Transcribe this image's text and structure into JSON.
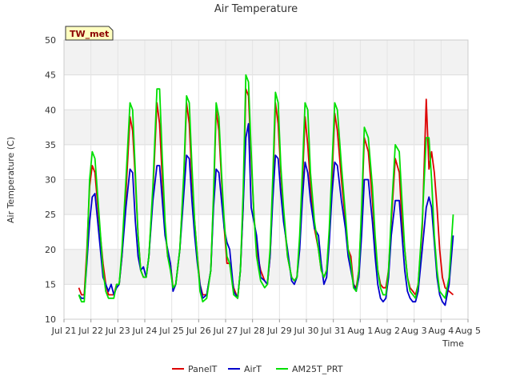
{
  "chart_data": {
    "type": "line",
    "title": "Air Temperature",
    "xlabel": "Time",
    "ylabel": "Air Temperature (C)",
    "ylim": [
      10,
      50
    ],
    "yticks": [
      10,
      15,
      20,
      25,
      30,
      35,
      40,
      45,
      50
    ],
    "xlim": [
      0,
      15
    ],
    "xtick_labels": [
      "Jul 21",
      "Jul 22",
      "Jul 23",
      "Jul 24",
      "Jul 25",
      "Jul 26",
      "Jul 27",
      "Jul 28",
      "Jul 29",
      "Jul 30",
      "Jul 31",
      "Aug 1",
      "Aug 2",
      "Aug 3",
      "Aug 4",
      "Aug 5"
    ],
    "grid": true,
    "legend_position": "bottom",
    "station_label": "TW_met",
    "x_day_offsets": [
      0.55,
      0.65,
      0.75,
      0.85,
      0.95,
      1.05,
      1.15,
      1.3,
      1.45,
      1.55,
      1.65,
      1.75,
      1.85,
      1.95,
      2.05,
      2.15,
      2.3,
      2.45,
      2.55,
      2.65,
      2.75,
      2.85,
      2.95,
      3.05,
      3.15,
      3.3,
      3.45,
      3.55,
      3.65,
      3.75,
      3.85,
      3.95,
      4.05,
      4.15,
      4.3,
      4.45,
      4.55,
      4.65,
      4.75,
      4.85,
      4.95,
      5.05,
      5.15,
      5.3,
      5.45,
      5.55,
      5.65,
      5.75,
      5.85,
      5.95,
      6.05,
      6.15,
      6.3,
      6.45,
      6.55,
      6.65,
      6.75,
      6.85,
      6.95,
      7.05,
      7.15,
      7.3,
      7.45,
      7.55,
      7.65,
      7.75,
      7.85,
      7.95,
      8.05,
      8.15,
      8.3,
      8.45,
      8.55,
      8.65,
      8.75,
      8.85,
      8.95,
      9.05,
      9.15,
      9.3,
      9.45,
      9.55,
      9.65,
      9.75,
      9.85,
      9.95,
      10.05,
      10.15,
      10.3,
      10.45,
      10.55,
      10.65,
      10.75,
      10.85,
      10.95,
      11.05,
      11.15,
      11.3,
      11.45,
      11.55,
      11.65,
      11.75,
      11.85,
      11.95,
      12.05,
      12.15,
      12.3,
      12.45,
      12.55,
      12.65,
      12.75,
      12.85,
      12.95,
      13.05,
      13.15,
      13.3,
      13.45,
      13.55,
      13.65,
      13.75,
      13.85,
      13.95,
      14.05,
      14.15,
      14.3,
      14.45
    ],
    "series": [
      {
        "name": "PanelT",
        "color": "#dd0000",
        "values": [
          14.5,
          13.5,
          13.5,
          20,
          29,
          32,
          31,
          24,
          18,
          15,
          13.5,
          13.5,
          13.5,
          15,
          15,
          19,
          28,
          39,
          37,
          30,
          22,
          17,
          16,
          16,
          19,
          28,
          41,
          38,
          30,
          23,
          19,
          18,
          14.5,
          15,
          20,
          30,
          41,
          38,
          30,
          24,
          19,
          15,
          13.5,
          13.5,
          17,
          27,
          40,
          37,
          30,
          23,
          18,
          18,
          14.5,
          13,
          17,
          26,
          43,
          42,
          33,
          25,
          20,
          17,
          15.5,
          15,
          19,
          28,
          41,
          38,
          31,
          25,
          19,
          16,
          15.5,
          16,
          21,
          29,
          39,
          35,
          29,
          23,
          20,
          17,
          16,
          17,
          22,
          30,
          39.5,
          37,
          30,
          24,
          20,
          19,
          15,
          14.5,
          17,
          25,
          36,
          34,
          27,
          21,
          17,
          15,
          14.5,
          14.5,
          17,
          24,
          33,
          31,
          24,
          20,
          16,
          14.5,
          14,
          13.5,
          15,
          23,
          41.5,
          31.5,
          34,
          31,
          26,
          20,
          16,
          14.5,
          14,
          13.5,
          16,
          24,
          35,
          36,
          30,
          24,
          20,
          18,
          14.5,
          14,
          17,
          26,
          39,
          35,
          29,
          23,
          19,
          16,
          15
        ],
        "pad": 0
      },
      {
        "name": "AirT",
        "color": "#0000cc",
        "values": [
          13.5,
          13,
          13,
          18,
          24,
          27.5,
          28,
          22,
          16,
          15,
          14,
          15,
          13.5,
          14.5,
          15,
          19,
          26,
          31.5,
          31,
          24,
          19,
          17,
          17.5,
          16,
          19,
          27,
          32,
          32,
          27,
          22,
          20,
          18,
          14,
          15,
          20,
          28,
          33.5,
          33,
          27,
          22,
          18,
          15,
          13,
          13.5,
          17,
          26,
          31.5,
          31,
          27,
          23,
          21,
          20,
          14,
          13,
          17,
          26,
          36,
          38,
          26,
          24,
          22,
          16,
          15.5,
          15,
          19,
          27,
          33.5,
          33,
          28,
          24,
          20,
          15.5,
          15,
          16,
          20,
          27,
          32.5,
          31,
          27,
          23,
          22,
          18,
          15,
          16,
          21,
          28,
          32.5,
          32,
          27,
          23,
          19,
          17,
          15,
          14,
          16,
          22,
          30,
          30,
          24,
          19,
          15,
          13,
          12.5,
          13,
          16,
          22,
          27,
          27,
          22,
          17,
          14,
          13,
          12.5,
          12.5,
          14,
          20,
          26,
          27.5,
          26,
          21,
          16,
          13.5,
          12.5,
          12,
          15,
          22,
          29,
          29.5,
          27,
          21,
          20,
          16,
          14,
          13.5,
          17,
          24,
          30,
          30,
          27,
          21,
          17,
          15,
          14
        ],
        "pad": 0
      },
      {
        "name": "AM25T_PRT",
        "color": "#00e000",
        "values": [
          13.5,
          12.5,
          12.5,
          19,
          30,
          34,
          33,
          25,
          17,
          14,
          13,
          13,
          13,
          15,
          15,
          20,
          30,
          41,
          40,
          31,
          22,
          17,
          16,
          16,
          19,
          29,
          43,
          43,
          33,
          24,
          19,
          17,
          14.5,
          15,
          20,
          31,
          42,
          41,
          32,
          24,
          19,
          14,
          12.5,
          13,
          17,
          28,
          41,
          39,
          31,
          24,
          19,
          18,
          13.5,
          13,
          17,
          28,
          45,
          44,
          34,
          25,
          19,
          15.5,
          14.5,
          15,
          20,
          30,
          42.5,
          41,
          32,
          26,
          19,
          16,
          15.5,
          16,
          22,
          31,
          41,
          40,
          31,
          24,
          20,
          17,
          16,
          17,
          23,
          32,
          41,
          40,
          32,
          25,
          20,
          18,
          14.5,
          14,
          17,
          26,
          37.5,
          36,
          29,
          22,
          17,
          14.5,
          13.5,
          13.5,
          17,
          25,
          35,
          34,
          27,
          20,
          16,
          14,
          13.5,
          13,
          15,
          24,
          36,
          36,
          30,
          22,
          17,
          14,
          13.5,
          13,
          16,
          25,
          37,
          38,
          32,
          24,
          20,
          16,
          14,
          13,
          17,
          27,
          41,
          38,
          31,
          24,
          19,
          15,
          14
        ]
      }
    ]
  }
}
